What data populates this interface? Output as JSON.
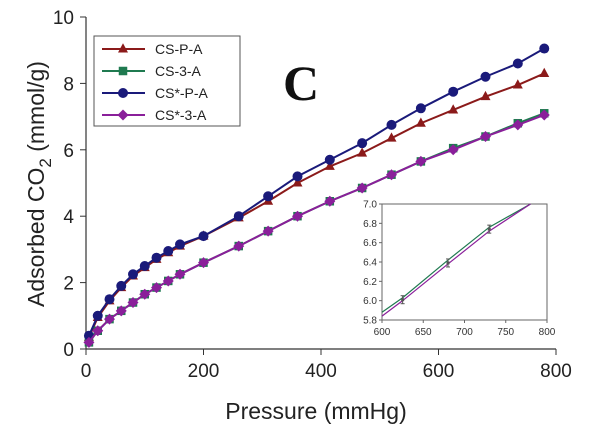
{
  "chart_data": [
    {
      "type": "line",
      "panel_label": "C",
      "xlabel": "Pressure (mmHg)",
      "ylabel_main": "Adsorbed CO",
      "ylabel_sub": "2",
      "ylabel_unit": " (mmol/g)",
      "xlim": [
        0,
        800
      ],
      "ylim": [
        0,
        10
      ],
      "xticks": [
        "0",
        "200",
        "400",
        "600",
        "800"
      ],
      "yticks": [
        "0",
        "2",
        "4",
        "6",
        "8",
        "10"
      ],
      "grid": false,
      "legend_position": "top-left",
      "series": [
        {
          "name": "CS-P-A",
          "color": "#8b1a1a",
          "marker": "triangle",
          "x": [
            5,
            20,
            40,
            60,
            80,
            100,
            120,
            140,
            160,
            200,
            260,
            310,
            360,
            415,
            470,
            520,
            570,
            625,
            680,
            735,
            780
          ],
          "y": [
            0.35,
            0.95,
            1.45,
            1.85,
            2.2,
            2.45,
            2.7,
            2.9,
            3.1,
            3.4,
            3.95,
            4.45,
            5.0,
            5.5,
            5.9,
            6.35,
            6.8,
            7.2,
            7.6,
            7.95,
            8.3
          ]
        },
        {
          "name": "CS-3-A",
          "color": "#1f7a50",
          "marker": "square",
          "x": [
            5,
            20,
            40,
            60,
            80,
            100,
            120,
            140,
            160,
            200,
            260,
            310,
            360,
            415,
            470,
            520,
            570,
            625,
            680,
            735,
            780
          ],
          "y": [
            0.2,
            0.55,
            0.9,
            1.15,
            1.4,
            1.65,
            1.85,
            2.05,
            2.25,
            2.6,
            3.1,
            3.55,
            4.0,
            4.45,
            4.85,
            5.25,
            5.65,
            6.05,
            6.4,
            6.8,
            7.1
          ]
        },
        {
          "name": "CS*-P-A",
          "color": "#1a1a7a",
          "marker": "circle",
          "x": [
            5,
            20,
            40,
            60,
            80,
            100,
            120,
            140,
            160,
            200,
            260,
            310,
            360,
            415,
            470,
            520,
            570,
            625,
            680,
            735,
            780
          ],
          "y": [
            0.4,
            1.0,
            1.5,
            1.9,
            2.25,
            2.5,
            2.75,
            2.95,
            3.15,
            3.4,
            4.0,
            4.6,
            5.2,
            5.7,
            6.2,
            6.75,
            7.25,
            7.75,
            8.2,
            8.6,
            9.05
          ]
        },
        {
          "name": "CS*-3-A",
          "color": "#8a1f9a",
          "marker": "diamond",
          "x": [
            5,
            20,
            40,
            60,
            80,
            100,
            120,
            140,
            160,
            200,
            260,
            310,
            360,
            415,
            470,
            520,
            570,
            625,
            680,
            735,
            780
          ],
          "y": [
            0.2,
            0.55,
            0.9,
            1.15,
            1.4,
            1.65,
            1.85,
            2.05,
            2.25,
            2.6,
            3.1,
            3.55,
            4.0,
            4.45,
            4.85,
            5.25,
            5.65,
            6.0,
            6.4,
            6.75,
            7.05
          ]
        }
      ]
    },
    {
      "type": "line",
      "role": "inset",
      "xlim": [
        600,
        800
      ],
      "ylim": [
        5.8,
        7.0
      ],
      "xticks": [
        "600",
        "650",
        "700",
        "750",
        "800"
      ],
      "yticks": [
        "5.8",
        "6.0",
        "6.2",
        "6.4",
        "6.6",
        "6.8",
        "7.0"
      ],
      "grid": false,
      "series": [
        {
          "color": "#1f7a50",
          "x": [
            600,
            625,
            680,
            730,
            780
          ],
          "y": [
            5.88,
            6.03,
            6.42,
            6.76,
            7.1
          ]
        },
        {
          "color": "#8a1f9a",
          "x": [
            600,
            625,
            680,
            730,
            780
          ],
          "y": [
            5.84,
            6.0,
            6.38,
            6.72,
            7.05
          ]
        },
        {
          "color": "#555555",
          "x": [
            625,
            680,
            730
          ],
          "y": [
            6.01,
            6.39,
            6.74
          ],
          "marker": "errorbar"
        }
      ]
    }
  ]
}
